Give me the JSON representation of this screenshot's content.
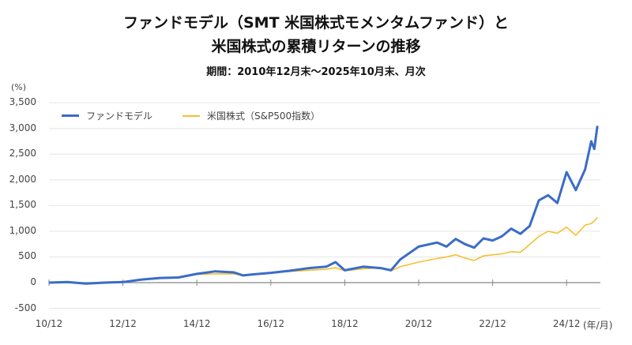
{
  "title": {
    "line1": "ファンドモデル（SMT 米国株式モメンタムファンド）と",
    "line2": "米国株式の累積リターンの推移",
    "subtitle": "期間：2010年12月末～2025年10月末、月次"
  },
  "axes": {
    "y_unit": "(%)",
    "x_unit": "(年/月)"
  },
  "legend": [
    {
      "label": "ファンドモデル",
      "color": "#3a6cc8"
    },
    {
      "label": "米国株式（S&P500指数）",
      "color": "#f2c12e"
    }
  ],
  "chart_data": {
    "type": "line",
    "title": "ファンドモデル（SMT 米国株式モメンタムファンド）と米国株式の累積リターンの推移",
    "subtitle": "期間：2010年12月末～2025年10月末、月次",
    "xlabel": "(年/月)",
    "ylabel": "(%)",
    "ylim": [
      -500,
      3500
    ],
    "yticks": [
      "3,500",
      "3,000",
      "2,500",
      "2,000",
      "1,500",
      "1,000",
      "500",
      "0",
      "-500"
    ],
    "ytick_values": [
      3500,
      3000,
      2500,
      2000,
      1500,
      1000,
      500,
      0,
      -500
    ],
    "xticks": [
      "10/12",
      "12/12",
      "14/12",
      "16/12",
      "18/12",
      "20/12",
      "22/12",
      "24/12"
    ],
    "grid": true,
    "legend_position": "top-left",
    "series": [
      {
        "name": "ファンドモデル",
        "color": "#3a6cc8",
        "x": [
          "2010/12",
          "2011/6",
          "2011/12",
          "2012/6",
          "2012/12",
          "2013/6",
          "2013/12",
          "2014/6",
          "2014/12",
          "2015/6",
          "2015/12",
          "2016/3",
          "2016/6",
          "2016/12",
          "2017/6",
          "2017/12",
          "2018/6",
          "2018/9",
          "2018/12",
          "2019/6",
          "2019/12",
          "2020/3",
          "2020/6",
          "2020/12",
          "2021/6",
          "2021/9",
          "2021/12",
          "2022/3",
          "2022/6",
          "2022/9",
          "2022/12",
          "2023/3",
          "2023/6",
          "2023/9",
          "2023/12",
          "2024/3",
          "2024/6",
          "2024/9",
          "2024/12",
          "2025/3",
          "2025/6",
          "2025/8",
          "2025/9",
          "2025/10"
        ],
        "values": [
          0,
          10,
          -20,
          0,
          10,
          60,
          90,
          100,
          170,
          220,
          200,
          140,
          160,
          190,
          230,
          280,
          310,
          400,
          240,
          310,
          280,
          240,
          450,
          700,
          780,
          700,
          850,
          750,
          680,
          860,
          820,
          900,
          1050,
          950,
          1100,
          1600,
          1700,
          1550,
          2150,
          1800,
          2200,
          2750,
          2600,
          3050
        ]
      },
      {
        "name": "米国株式（S&P500指数）",
        "color": "#f2c12e",
        "x": [
          "2010/12",
          "2011/6",
          "2011/12",
          "2012/6",
          "2012/12",
          "2013/6",
          "2013/12",
          "2014/6",
          "2014/12",
          "2015/6",
          "2015/12",
          "2016/3",
          "2016/6",
          "2016/12",
          "2017/6",
          "2017/12",
          "2018/6",
          "2018/9",
          "2018/12",
          "2019/6",
          "2019/12",
          "2020/3",
          "2020/6",
          "2020/12",
          "2021/6",
          "2021/9",
          "2021/12",
          "2022/3",
          "2022/6",
          "2022/9",
          "2022/12",
          "2023/3",
          "2023/6",
          "2023/9",
          "2023/12",
          "2024/3",
          "2024/6",
          "2024/9",
          "2024/12",
          "2025/3",
          "2025/6",
          "2025/8",
          "2025/9",
          "2025/10"
        ],
        "values": [
          0,
          10,
          -10,
          10,
          20,
          55,
          80,
          110,
          160,
          170,
          170,
          140,
          155,
          190,
          215,
          240,
          260,
          290,
          230,
          270,
          290,
          230,
          310,
          400,
          470,
          500,
          540,
          480,
          430,
          520,
          540,
          560,
          600,
          590,
          740,
          900,
          1000,
          960,
          1080,
          920,
          1120,
          1150,
          1200,
          1270
        ]
      }
    ]
  }
}
